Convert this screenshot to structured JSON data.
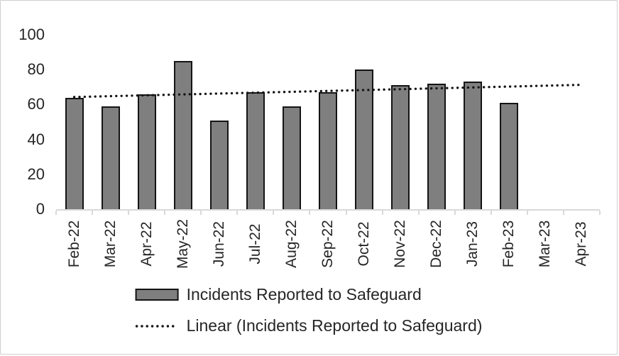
{
  "chart_data": {
    "type": "bar",
    "title": "",
    "categories": [
      "Feb-22",
      "Mar-22",
      "Apr-22",
      "May-22",
      "Jun-22",
      "Jul-22",
      "Aug-22",
      "Sep-22",
      "Oct-22",
      "Nov-22",
      "Dec-22",
      "Jan-23",
      "Feb-23",
      "Mar-23",
      "Apr-23"
    ],
    "series": [
      {
        "name": "Incidents Reported to Safeguard",
        "type": "bar",
        "values": [
          64,
          59,
          66,
          85,
          51,
          67,
          59,
          67,
          80,
          71,
          72,
          73,
          61,
          null,
          null
        ]
      },
      {
        "name": "Linear (Incidents Reported to Safeguard)",
        "type": "linear-trendline",
        "start_category": "Feb-22",
        "end_category": "Apr-23",
        "start_value": 64.3,
        "end_value": 71.3
      }
    ],
    "ylim": [
      0,
      100
    ],
    "yticks": [
      0,
      20,
      40,
      60,
      80,
      100
    ],
    "xlabel": "",
    "ylabel": "",
    "grid": false,
    "legend_position": "bottom"
  },
  "legend": {
    "items": [
      {
        "label": "Incidents Reported to Safeguard",
        "swatch": "gray-bar"
      },
      {
        "label": "Linear (Incidents Reported to Safeguard)",
        "swatch": "dotted-line"
      }
    ]
  },
  "colors": {
    "bar_fill": "#7f7f7f",
    "bar_border": "#141414",
    "trendline": "#141414",
    "axis_line": "#d9d9d9",
    "text": "#262626",
    "frame_border": "#cfcfcf",
    "background": "#ffffff"
  }
}
